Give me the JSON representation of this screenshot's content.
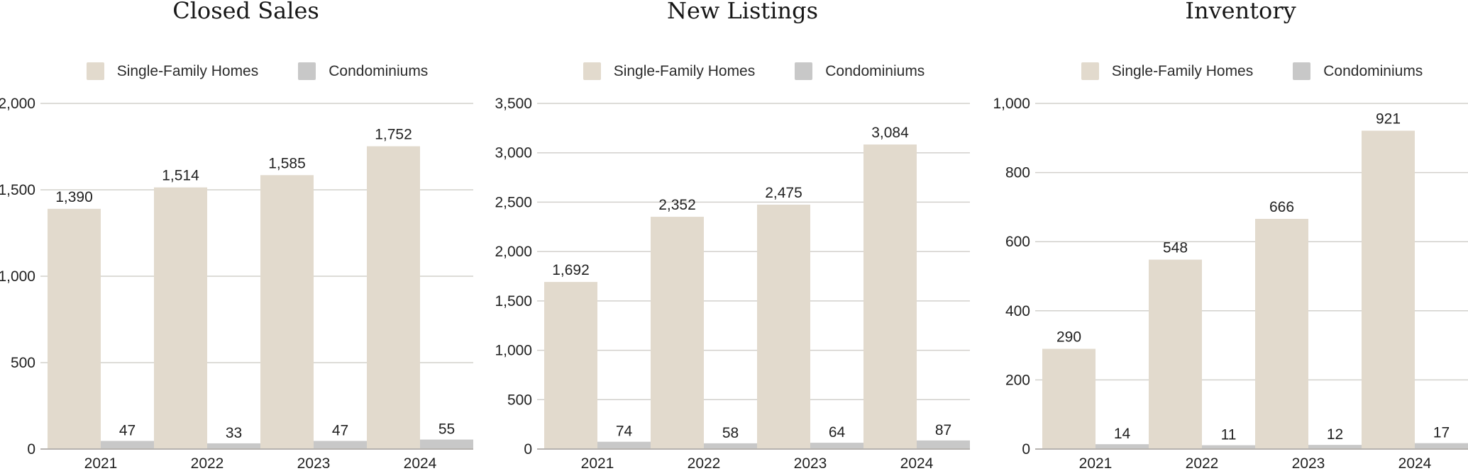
{
  "page": {
    "background": "#ffffff"
  },
  "colors": {
    "single_family": "#e2dacd",
    "condominiums": "#c8c8c8",
    "gridline": "#d2d0cc",
    "axis_line": "#b5b2ae",
    "label_text": "#212121",
    "title_text": "#171717"
  },
  "legend": {
    "items": [
      {
        "key": "single_family",
        "label": "Single-Family Homes"
      },
      {
        "key": "condominiums",
        "label": "Condominiums"
      }
    ]
  },
  "chart_data": [
    {
      "type": "bar",
      "title": "Closed Sales",
      "categories": [
        "2021",
        "2022",
        "2023",
        "2024"
      ],
      "series": [
        {
          "name": "Single-Family Homes",
          "color_key": "single_family",
          "values": [
            1390,
            1514,
            1585,
            1752
          ],
          "labels": [
            "1,390",
            "1,514",
            "1,585",
            "1,752"
          ]
        },
        {
          "name": "Condominiums",
          "color_key": "condominiums",
          "values": [
            47,
            33,
            47,
            55
          ],
          "labels": [
            "47",
            "33",
            "47",
            "55"
          ]
        }
      ],
      "xlabel": "",
      "ylabel": "",
      "ylim": [
        0,
        2000
      ],
      "grid": true,
      "legend_position": "top",
      "yticks": [
        {
          "value": 0,
          "label": "0"
        },
        {
          "value": 500,
          "label": "500"
        },
        {
          "value": 1000,
          "label": "1,000"
        },
        {
          "value": 1500,
          "label": "1,500"
        },
        {
          "value": 2000,
          "label": "2,000"
        }
      ]
    },
    {
      "type": "bar",
      "title": "New Listings",
      "categories": [
        "2021",
        "2022",
        "2023",
        "2024"
      ],
      "series": [
        {
          "name": "Single-Family Homes",
          "color_key": "single_family",
          "values": [
            1692,
            2352,
            2475,
            3084
          ],
          "labels": [
            "1,692",
            "2,352",
            "2,475",
            "3,084"
          ]
        },
        {
          "name": "Condominiums",
          "color_key": "condominiums",
          "values": [
            74,
            58,
            64,
            87
          ],
          "labels": [
            "74",
            "58",
            "64",
            "87"
          ]
        }
      ],
      "xlabel": "",
      "ylabel": "",
      "ylim": [
        0,
        3500
      ],
      "grid": true,
      "legend_position": "top",
      "yticks": [
        {
          "value": 0,
          "label": "0"
        },
        {
          "value": 500,
          "label": "500"
        },
        {
          "value": 1000,
          "label": "1,000"
        },
        {
          "value": 1500,
          "label": "1,500"
        },
        {
          "value": 2000,
          "label": "2,000"
        },
        {
          "value": 2500,
          "label": "2,500"
        },
        {
          "value": 3000,
          "label": "3,000"
        },
        {
          "value": 3500,
          "label": "3,500"
        }
      ]
    },
    {
      "type": "bar",
      "title": "Inventory",
      "categories": [
        "2021",
        "2022",
        "2023",
        "2024"
      ],
      "series": [
        {
          "name": "Single-Family Homes",
          "color_key": "single_family",
          "values": [
            290,
            548,
            666,
            921
          ],
          "labels": [
            "290",
            "548",
            "666",
            "921"
          ]
        },
        {
          "name": "Condominiums",
          "color_key": "condominiums",
          "values": [
            14,
            11,
            12,
            17
          ],
          "labels": [
            "14",
            "11",
            "12",
            "17"
          ]
        }
      ],
      "xlabel": "",
      "ylabel": "",
      "ylim": [
        0,
        1000
      ],
      "grid": true,
      "legend_position": "top",
      "yticks": [
        {
          "value": 0,
          "label": "0"
        },
        {
          "value": 200,
          "label": "200"
        },
        {
          "value": 400,
          "label": "400"
        },
        {
          "value": 600,
          "label": "600"
        },
        {
          "value": 800,
          "label": "800"
        },
        {
          "value": 1000,
          "label": "1,000"
        }
      ]
    }
  ]
}
